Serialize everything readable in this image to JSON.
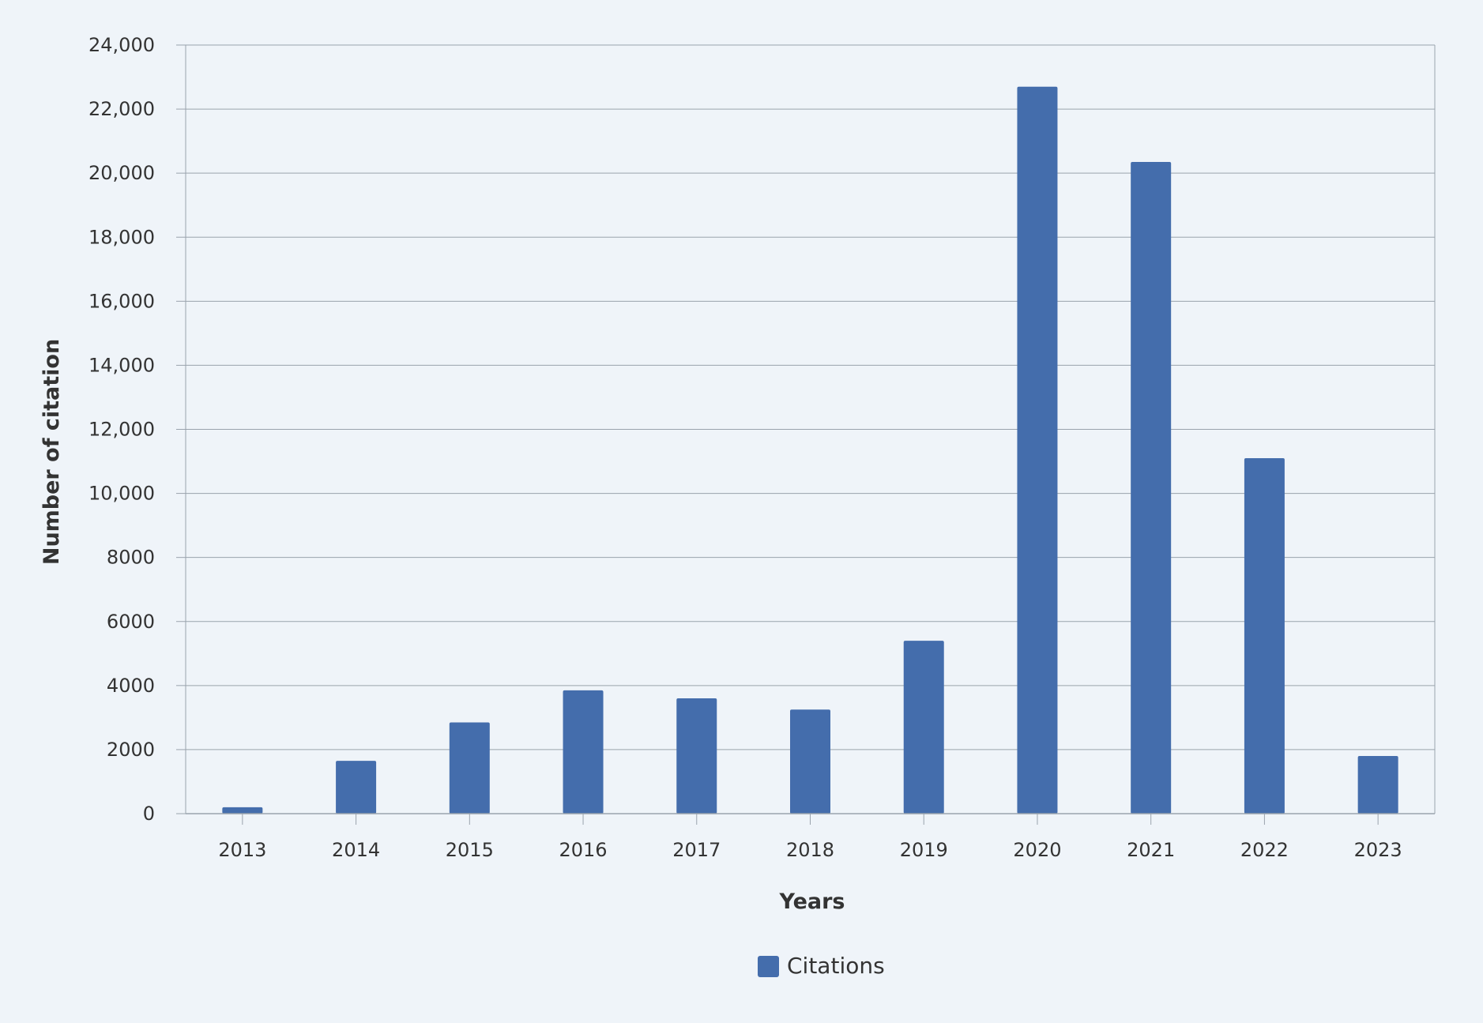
{
  "chart_data": {
    "type": "bar",
    "title": "",
    "xlabel": "Years",
    "ylabel": "Number of citation",
    "categories": [
      "2013",
      "2014",
      "2015",
      "2016",
      "2017",
      "2018",
      "2019",
      "2020",
      "2021",
      "2022",
      "2023"
    ],
    "series": [
      {
        "name": "Citations",
        "values": [
          200,
          1650,
          2850,
          3850,
          3600,
          3250,
          5400,
          22700,
          20350,
          11100,
          1800
        ]
      }
    ],
    "ylim": [
      0,
      24000
    ],
    "yticks": [
      0,
      2000,
      4000,
      6000,
      8000,
      10000,
      12000,
      14000,
      16000,
      18000,
      20000,
      22000,
      24000
    ],
    "ytick_labels": [
      "0",
      "2000",
      "4000",
      "6000",
      "8000",
      "10,000",
      "12,000",
      "14,000",
      "16,000",
      "18,000",
      "20,000",
      "22,000",
      "24,000"
    ],
    "grid": true,
    "legend_position": "bottom-center",
    "colors": {
      "bar": "#446dac",
      "grid": "#9aa3ad",
      "background": "#eff4f9"
    }
  }
}
